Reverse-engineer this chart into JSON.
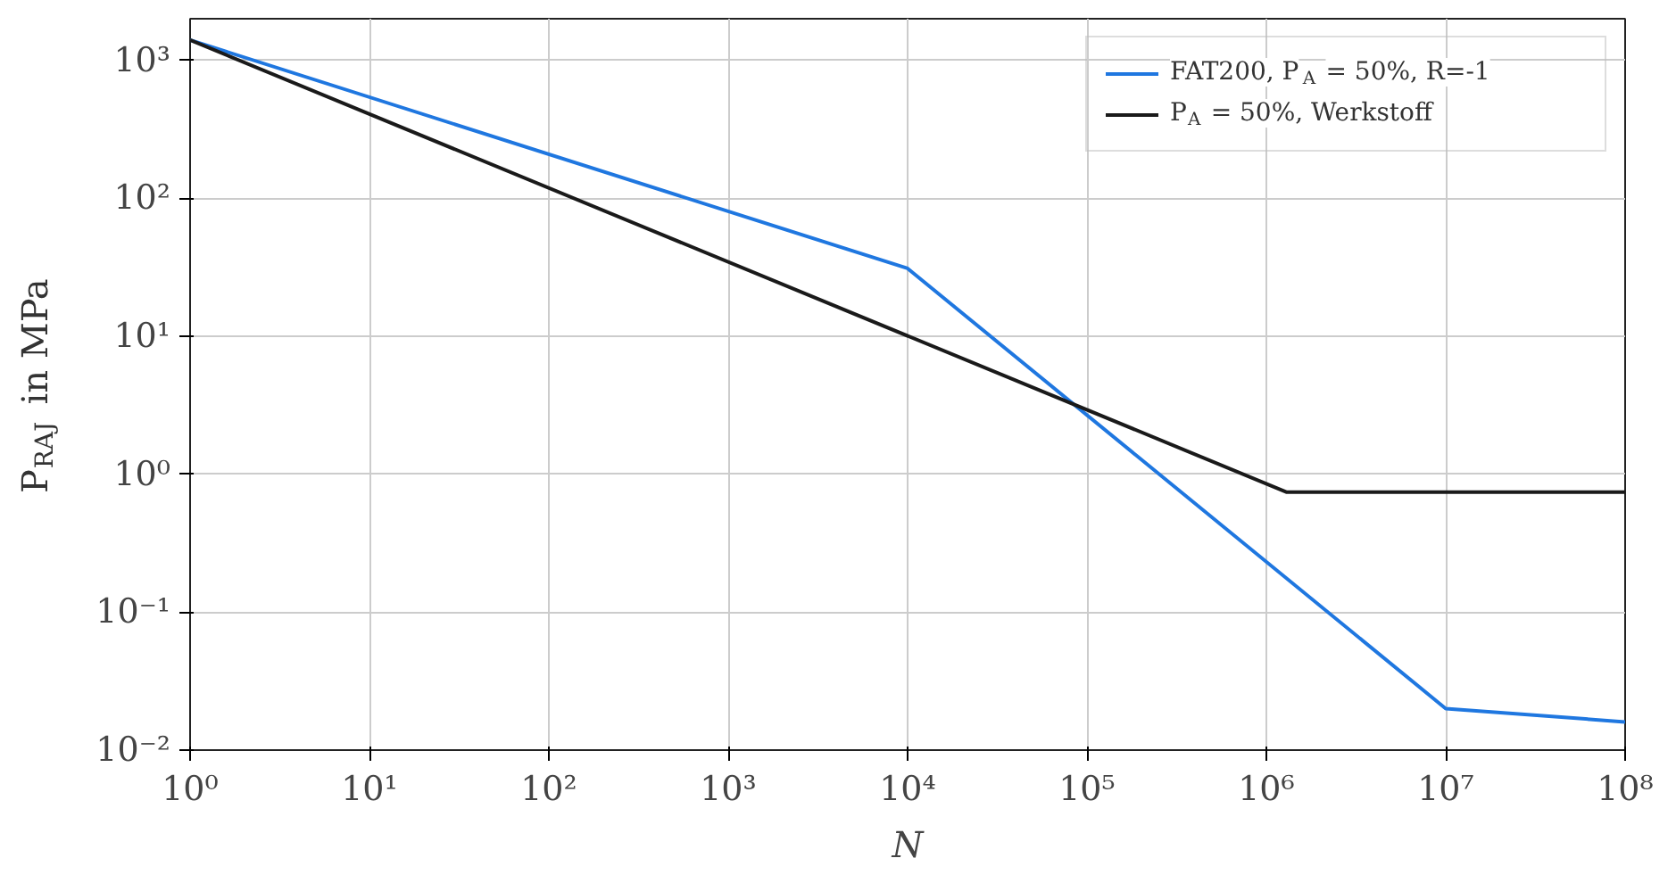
{
  "chart_data": {
    "type": "line",
    "xlabel": "N",
    "ylabel": "P$_{RAJ}$ in MPa",
    "log": "xy",
    "grid": true,
    "legend": "top right",
    "line_style": "solid",
    "marker": "none",
    "xlim": [
      1,
      100000000
    ],
    "ylim": [
      0.01,
      2000
    ],
    "xticks": [
      {
        "value": 1,
        "label": "10⁰"
      },
      {
        "value": 10,
        "label": "10¹"
      },
      {
        "value": 100,
        "label": "10²"
      },
      {
        "value": 1000,
        "label": "10³"
      },
      {
        "value": 10000,
        "label": "10⁴"
      },
      {
        "value": 100000,
        "label": "10⁵"
      },
      {
        "value": 1000000,
        "label": "10⁶"
      },
      {
        "value": 10000000,
        "label": "10⁷"
      },
      {
        "value": 100000000,
        "label": "10⁸"
      }
    ],
    "yticks": [
      {
        "value": 0.01,
        "label": "10⁻²"
      },
      {
        "value": 0.1,
        "label": "10⁻¹"
      },
      {
        "value": 1,
        "label": "10⁰"
      },
      {
        "value": 10,
        "label": "10¹"
      },
      {
        "value": 100,
        "label": "10²"
      },
      {
        "value": 1000,
        "label": "10³"
      }
    ],
    "series": [
      {
        "name": "FAT200, P$_{A}$ = 50%, R=-1",
        "color": "#1f77e0",
        "x": [
          1,
          10000,
          10000000,
          100000000
        ],
        "values": [
          1400,
          31,
          0.02,
          0.016
        ]
      },
      {
        "name": "P$_{A}$ = 50%, Werkstoff",
        "color": "#1a1a1a",
        "x": [
          1,
          1300000,
          100000000
        ],
        "values": [
          1400,
          0.74,
          0.74
        ]
      }
    ]
  }
}
